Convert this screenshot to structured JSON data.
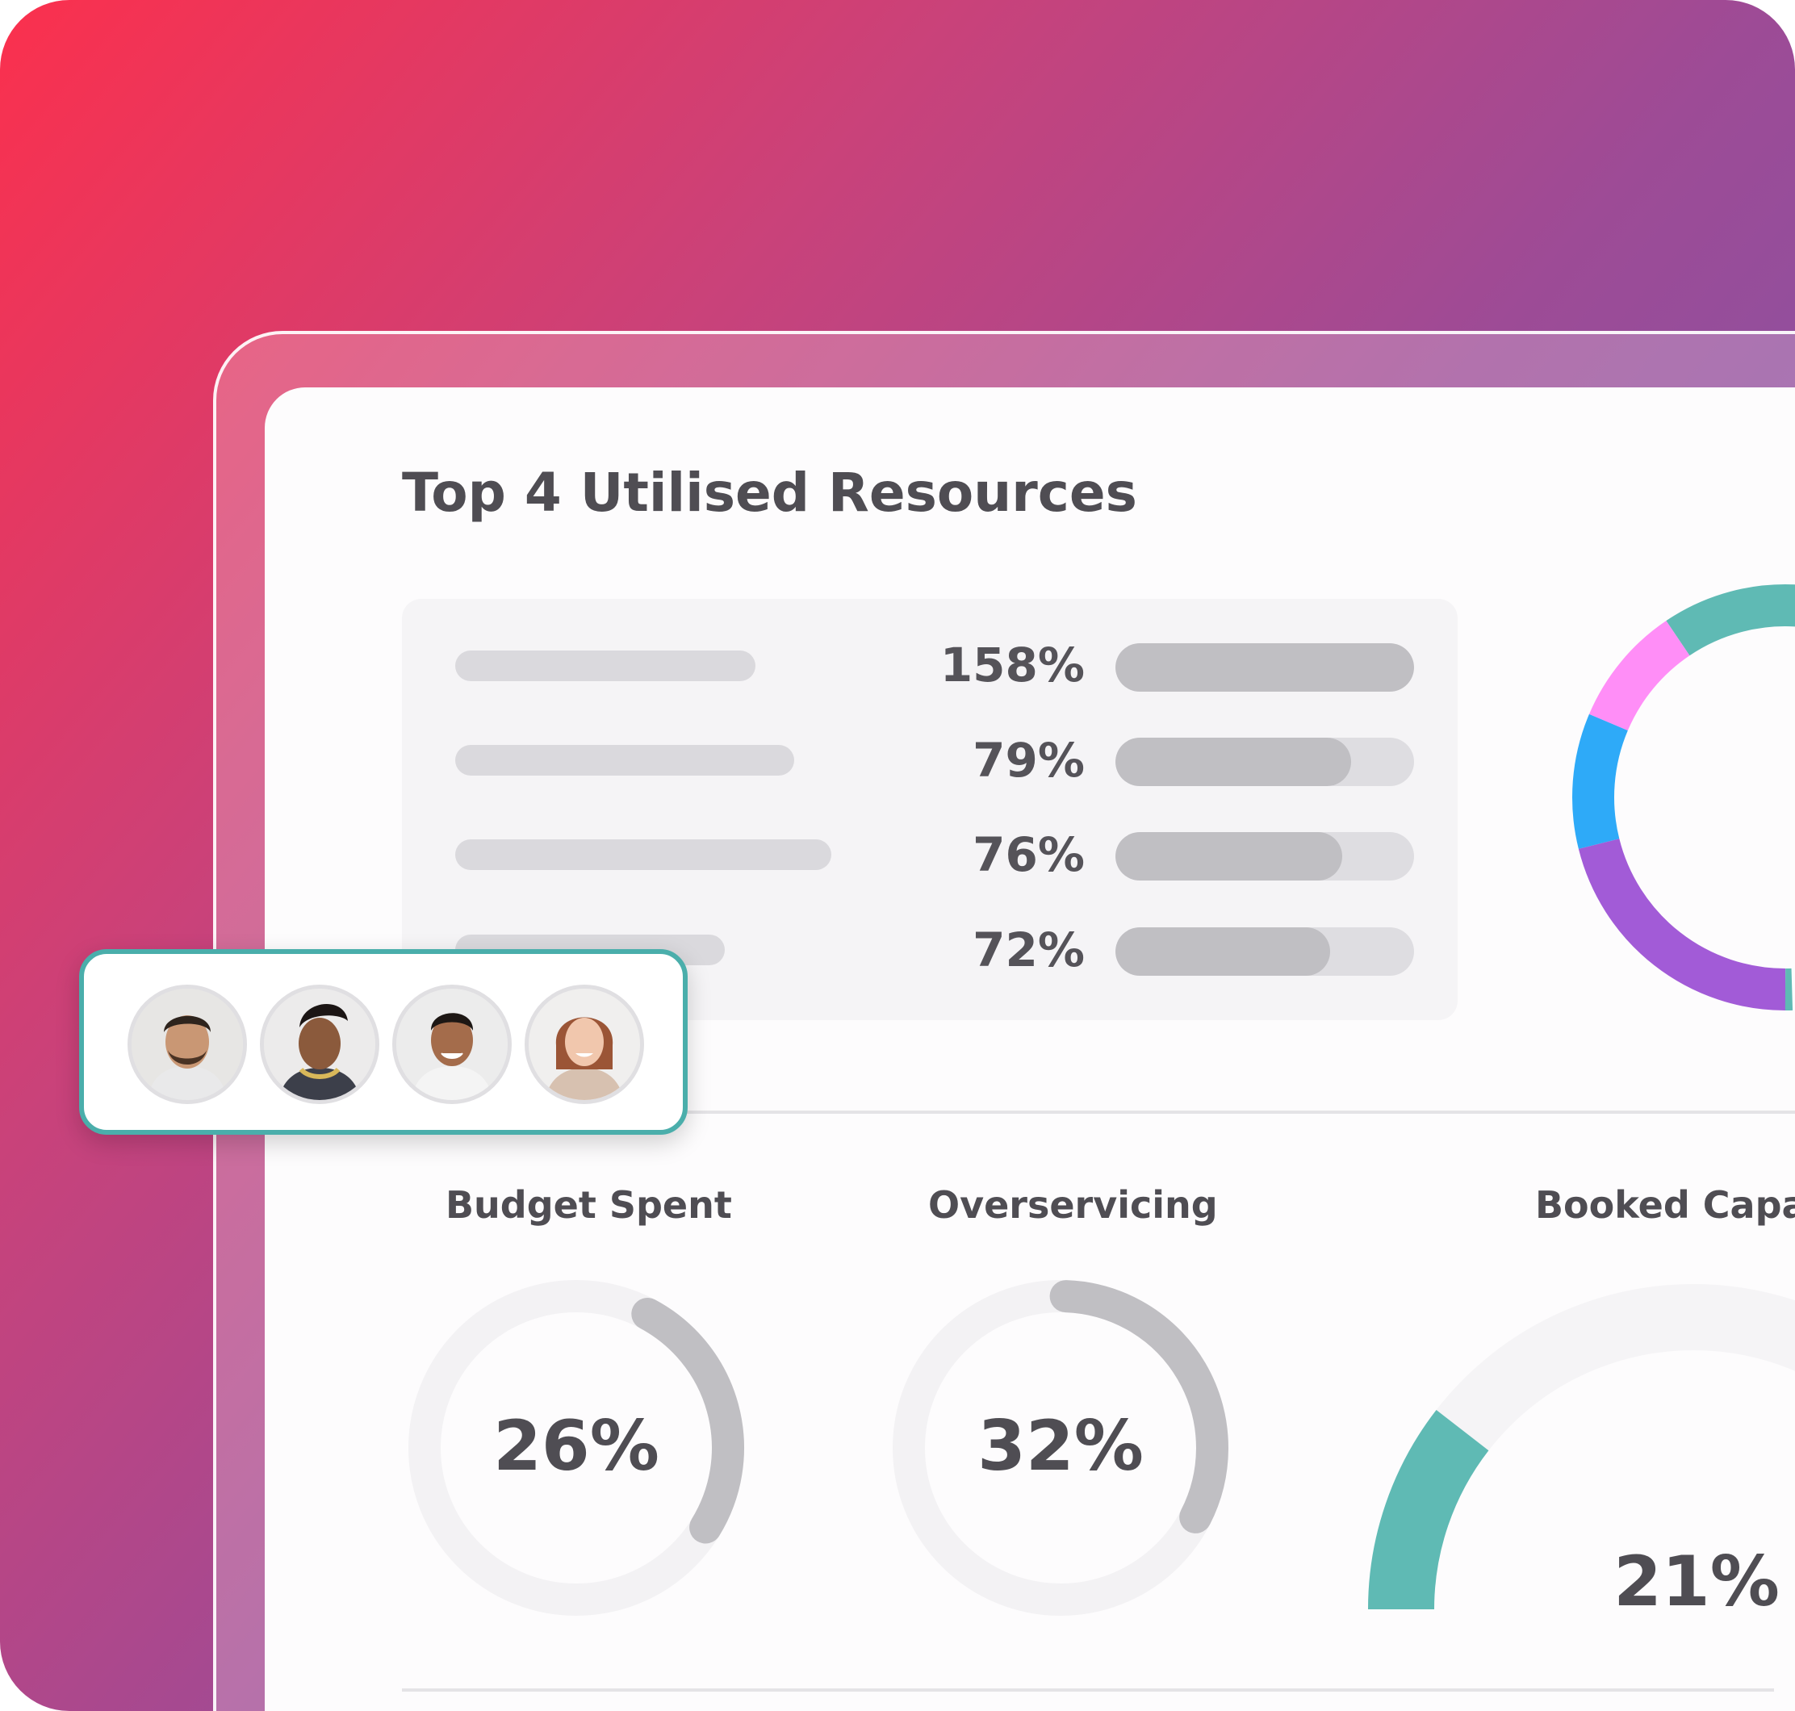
{
  "widget": {
    "title": "Top 4 Utilised Resources",
    "resources": [
      {
        "percent_label": "158%",
        "utilisation_pct": 158
      },
      {
        "percent_label": "79%",
        "utilisation_pct": 79
      },
      {
        "percent_label": "76%",
        "utilisation_pct": 76
      },
      {
        "percent_label": "72%",
        "utilisation_pct": 72
      }
    ]
  },
  "donut": {
    "segments": [
      {
        "color": "#5fbab4"
      },
      {
        "color": "#ff8ef7"
      },
      {
        "color": "#2eaaf8"
      },
      {
        "color": "#a25bd7"
      }
    ]
  },
  "gauges": [
    {
      "label": "Budget Spent",
      "value_label": "26%",
      "value_pct": 26,
      "arc_color": "#c0bfc3"
    },
    {
      "label": "Overservicing",
      "value_label": "32%",
      "value_pct": 32,
      "arc_color": "#c0bfc3"
    },
    {
      "label": "Booked Capac",
      "value_label": "21%",
      "value_pct": 21,
      "arc_color": "#5fbab4"
    }
  ],
  "team": {
    "avatars": [
      {
        "name": "avatar-man-beard"
      },
      {
        "name": "avatar-woman-braids"
      },
      {
        "name": "avatar-man-smiling"
      },
      {
        "name": "avatar-woman-auburn"
      }
    ],
    "border_color": "#4aaeab"
  }
}
